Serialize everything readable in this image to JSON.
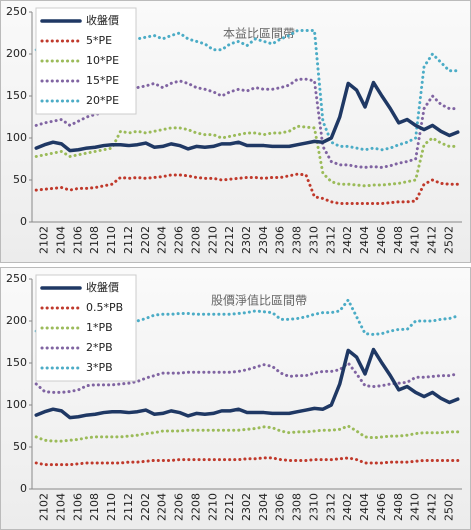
{
  "chart_data": [
    {
      "type": "line",
      "title": "本益比區間帶",
      "legend": "upper left",
      "grid": false,
      "categories": [
        null,
        "2102",
        null,
        "2104",
        null,
        "2106",
        null,
        "2108",
        null,
        "2110",
        null,
        "2112",
        null,
        "2202",
        null,
        "2204",
        null,
        "2206",
        null,
        "2208",
        null,
        "2210",
        null,
        "2212",
        null,
        "2302",
        null,
        "2304",
        null,
        "2306",
        null,
        "2308",
        null,
        "2310",
        null,
        "2312",
        null,
        "2402",
        null,
        "2404",
        null,
        "2406",
        null,
        "2408",
        null,
        "2410",
        null,
        "2412",
        null,
        "2502",
        null
      ],
      "ylim": [
        0,
        250
      ],
      "yticks": [
        0,
        50,
        100,
        150,
        200,
        250
      ],
      "series": [
        {
          "name": "收盤價",
          "color": "#1f3864",
          "style": "solid",
          "values": [
            88,
            92,
            95,
            93,
            85,
            86,
            88,
            89,
            91,
            92,
            92,
            91,
            92,
            94,
            89,
            90,
            93,
            91,
            87,
            90,
            89,
            90,
            93,
            93,
            95,
            91,
            91,
            91,
            90,
            90,
            90,
            92,
            94,
            96,
            95,
            100,
            125,
            165,
            157,
            137,
            166,
            150,
            135,
            118,
            122,
            115,
            110,
            115,
            108,
            103,
            107
          ]
        },
        {
          "name": "5*PE",
          "color": "#c0392b",
          "style": "dotted",
          "values": [
            38,
            39,
            40,
            41,
            38,
            40,
            40,
            41,
            43,
            45,
            53,
            52,
            53,
            52,
            53,
            54,
            56,
            56,
            55,
            53,
            52,
            52,
            50,
            51,
            52,
            53,
            53,
            52,
            53,
            53,
            55,
            57,
            56,
            30,
            28,
            24,
            22,
            22,
            22,
            22,
            22,
            22,
            23,
            24,
            24,
            25,
            45,
            50,
            46,
            45,
            45
          ]
        },
        {
          "name": "10*PE",
          "color": "#9bbb59",
          "style": "dotted",
          "values": [
            78,
            80,
            82,
            84,
            78,
            80,
            82,
            84,
            86,
            88,
            108,
            106,
            108,
            106,
            108,
            110,
            112,
            112,
            110,
            106,
            104,
            104,
            100,
            102,
            104,
            106,
            106,
            104,
            106,
            106,
            108,
            114,
            113,
            112,
            58,
            48,
            45,
            45,
            44,
            43,
            44,
            44,
            45,
            46,
            48,
            50,
            92,
            100,
            94,
            90,
            90
          ]
        },
        {
          "name": "15*PE",
          "color": "#8064a2",
          "style": "dotted",
          "values": [
            115,
            118,
            120,
            122,
            115,
            120,
            125,
            128,
            130,
            135,
            160,
            158,
            160,
            162,
            165,
            160,
            165,
            168,
            165,
            160,
            158,
            155,
            150,
            155,
            158,
            156,
            160,
            158,
            158,
            160,
            163,
            170,
            170,
            168,
            90,
            72,
            68,
            68,
            66,
            65,
            66,
            65,
            67,
            70,
            72,
            75,
            135,
            150,
            140,
            135,
            135
          ]
        },
        {
          "name": "20*PE",
          "color": "#4bacc6",
          "style": "dotted",
          "values": [
            205,
            207,
            210,
            212,
            210,
            212,
            214,
            216,
            218,
            212,
            215,
            215,
            218,
            220,
            222,
            218,
            222,
            225,
            218,
            215,
            212,
            205,
            205,
            212,
            215,
            210,
            218,
            215,
            212,
            218,
            222,
            228,
            228,
            228,
            120,
            95,
            90,
            90,
            88,
            86,
            88,
            86,
            88,
            92,
            95,
            100,
            185,
            200,
            190,
            180,
            180
          ]
        }
      ]
    },
    {
      "type": "line",
      "title": "股價淨值比區間帶",
      "legend": "upper left",
      "grid": false,
      "categories": [
        null,
        "2102",
        null,
        "2104",
        null,
        "2106",
        null,
        "2108",
        null,
        "2110",
        null,
        "2112",
        null,
        "2202",
        null,
        "2204",
        null,
        "2206",
        null,
        "2208",
        null,
        "2210",
        null,
        "2212",
        null,
        "2302",
        null,
        "2304",
        null,
        "2306",
        null,
        "2308",
        null,
        "2310",
        null,
        "2312",
        null,
        "2402",
        null,
        "2404",
        null,
        "2406",
        null,
        "2408",
        null,
        "2410",
        null,
        "2412",
        null,
        "2502",
        null
      ],
      "ylim": [
        0,
        250
      ],
      "yticks": [
        0,
        50,
        100,
        150,
        200,
        250
      ],
      "series": [
        {
          "name": "收盤價",
          "color": "#1f3864",
          "style": "solid",
          "values": [
            88,
            92,
            95,
            93,
            85,
            86,
            88,
            89,
            91,
            92,
            92,
            91,
            92,
            94,
            89,
            90,
            93,
            91,
            87,
            90,
            89,
            90,
            93,
            93,
            95,
            91,
            91,
            91,
            90,
            90,
            90,
            92,
            94,
            96,
            95,
            100,
            125,
            165,
            157,
            137,
            166,
            150,
            135,
            118,
            122,
            115,
            110,
            115,
            108,
            103,
            107
          ]
        },
        {
          "name": "0.5*PB",
          "color": "#c0392b",
          "style": "dotted",
          "values": [
            31,
            29,
            29,
            29,
            29,
            30,
            31,
            31,
            31,
            31,
            31,
            32,
            32,
            33,
            34,
            34,
            34,
            35,
            35,
            35,
            35,
            35,
            35,
            35,
            35,
            36,
            36,
            37,
            37,
            35,
            34,
            34,
            34,
            35,
            35,
            35,
            36,
            37,
            35,
            31,
            31,
            31,
            32,
            32,
            32,
            33,
            34,
            34,
            34,
            34,
            34
          ]
        },
        {
          "name": "1*PB",
          "color": "#9bbb59",
          "style": "dotted",
          "values": [
            62,
            58,
            57,
            57,
            58,
            59,
            61,
            62,
            62,
            62,
            62,
            63,
            64,
            66,
            67,
            69,
            69,
            69,
            70,
            70,
            70,
            70,
            70,
            70,
            70,
            71,
            72,
            74,
            73,
            69,
            67,
            68,
            68,
            69,
            70,
            70,
            71,
            75,
            69,
            62,
            61,
            62,
            63,
            63,
            64,
            66,
            67,
            67,
            67,
            68,
            68
          ]
        },
        {
          "name": "2*PB",
          "color": "#8064a2",
          "style": "dotted",
          "values": [
            125,
            116,
            115,
            115,
            116,
            118,
            123,
            124,
            124,
            124,
            125,
            126,
            128,
            132,
            135,
            138,
            138,
            138,
            139,
            139,
            139,
            139,
            139,
            139,
            140,
            142,
            145,
            148,
            146,
            138,
            134,
            135,
            135,
            138,
            140,
            140,
            142,
            150,
            137,
            123,
            122,
            123,
            125,
            126,
            127,
            133,
            133,
            134,
            135,
            135,
            137
          ]
        },
        {
          "name": "3*PB",
          "color": "#4bacc6",
          "style": "dotted",
          "values": [
            188,
            180,
            178,
            180,
            182,
            186,
            190,
            193,
            195,
            196,
            197,
            198,
            200,
            203,
            207,
            208,
            208,
            209,
            209,
            208,
            208,
            208,
            208,
            208,
            209,
            210,
            212,
            211,
            210,
            202,
            202,
            203,
            205,
            208,
            210,
            210,
            212,
            225,
            205,
            185,
            184,
            185,
            188,
            190,
            190,
            200,
            200,
            200,
            202,
            203,
            206
          ]
        }
      ]
    }
  ]
}
